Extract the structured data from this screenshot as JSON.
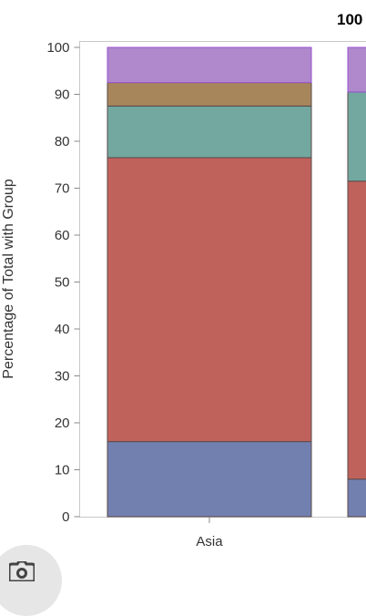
{
  "chart_data": {
    "type": "bar",
    "stacked": true,
    "title": "100",
    "ylabel": "Percentage of Total with Group",
    "xlabel": "",
    "ylim": [
      0,
      100
    ],
    "yticks": [
      0,
      10,
      20,
      30,
      40,
      50,
      60,
      70,
      80,
      90,
      100
    ],
    "grid": false,
    "categories": [
      "Asia",
      ""
    ],
    "series": [
      {
        "color": "#7280b0",
        "values": [
          16,
          8
        ]
      },
      {
        "color": "#c0625c",
        "values": [
          60.5,
          63.5
        ]
      },
      {
        "color": "#72a8a0",
        "values": [
          11,
          19
        ]
      },
      {
        "color": "#a8865c",
        "values": [
          5,
          0
        ]
      },
      {
        "color": "#b088cc",
        "values": [
          7.5,
          9.5
        ]
      }
    ]
  },
  "overlay": {
    "camera_icon": "camera-icon"
  }
}
